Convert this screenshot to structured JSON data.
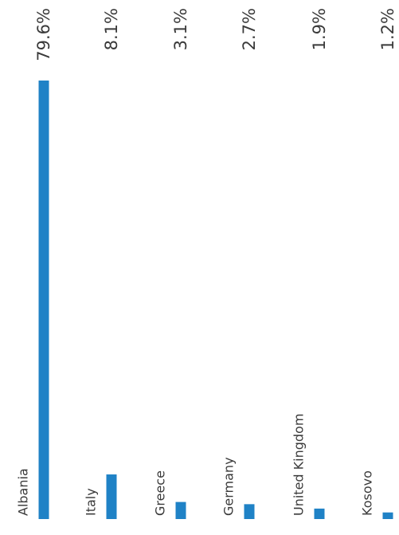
{
  "chart_data": {
    "type": "bar",
    "orientation": "horizontal, rotated 90° counter-clockwise",
    "categories": [
      "Albania",
      "Italy",
      "Greece",
      "Germany",
      "United Kingdom",
      "Kosovo"
    ],
    "values": [
      79.6,
      8.1,
      3.1,
      2.7,
      1.9,
      1.2
    ],
    "value_labels": [
      "79.6%",
      "8.1%",
      "3.1%",
      "2.7%",
      "1.9%",
      "1.2%"
    ],
    "title": "",
    "xlabel": "",
    "ylabel": "",
    "xlim": [
      0,
      79.6
    ],
    "grid": false,
    "legend": "none",
    "bar_color": "#1f82c6",
    "text_color": "#3a3a3a"
  }
}
